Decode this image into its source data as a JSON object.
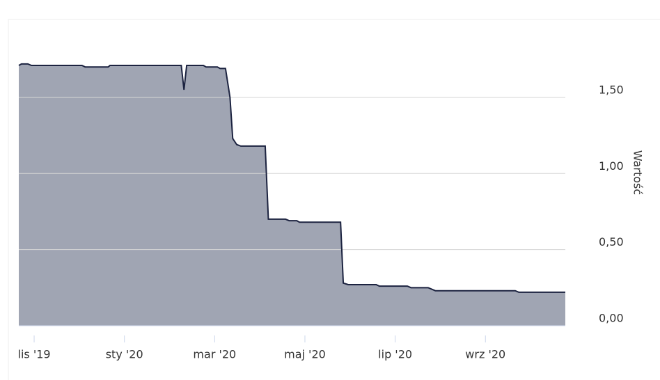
{
  "chart_data": {
    "type": "area",
    "y_label": "Wartość",
    "x": [
      -0.34,
      -0.28,
      -0.14,
      -0.06,
      1.06,
      1.13,
      1.64,
      1.68,
      3.26,
      3.32,
      3.38,
      3.75,
      3.81,
      4.06,
      4.12,
      4.24,
      4.34,
      4.4,
      4.49,
      4.58,
      5.12,
      5.19,
      5.57,
      5.65,
      5.82,
      5.88,
      6.79,
      6.85,
      6.96,
      7.58,
      7.65,
      8.27,
      8.35,
      8.73,
      8.89,
      10.66,
      10.74,
      11.77
    ],
    "series": [
      {
        "color": "#1c2340",
        "fill": "#a0a5b3",
        "values": [
          1.71,
          1.72,
          1.72,
          1.71,
          1.71,
          1.7,
          1.7,
          1.71,
          1.71,
          1.55,
          1.71,
          1.71,
          1.7,
          1.7,
          1.69,
          1.69,
          1.5,
          1.23,
          1.19,
          1.18,
          1.18,
          0.7,
          0.7,
          0.69,
          0.69,
          0.68,
          0.68,
          0.28,
          0.27,
          0.27,
          0.26,
          0.26,
          0.25,
          0.25,
          0.23,
          0.23,
          0.22,
          0.22
        ]
      }
    ],
    "xlim": [
      -0.34,
      11.77
    ],
    "xticks": [
      {
        "value": 0,
        "label": "lis '19"
      },
      {
        "value": 2,
        "label": "sty '20"
      },
      {
        "value": 4,
        "label": "mar '20"
      },
      {
        "value": 6,
        "label": "maj '20"
      },
      {
        "value": 8,
        "label": "lip '20"
      },
      {
        "value": 10,
        "label": "wrz '20"
      }
    ],
    "ylim": [
      0,
      2
    ],
    "yticks": [
      {
        "value": 0,
        "label": "0,00"
      },
      {
        "value": 0.5,
        "label": "0,50"
      },
      {
        "value": 1,
        "label": "1,00"
      },
      {
        "value": 1.5,
        "label": "1,50"
      }
    ],
    "grid": true
  }
}
